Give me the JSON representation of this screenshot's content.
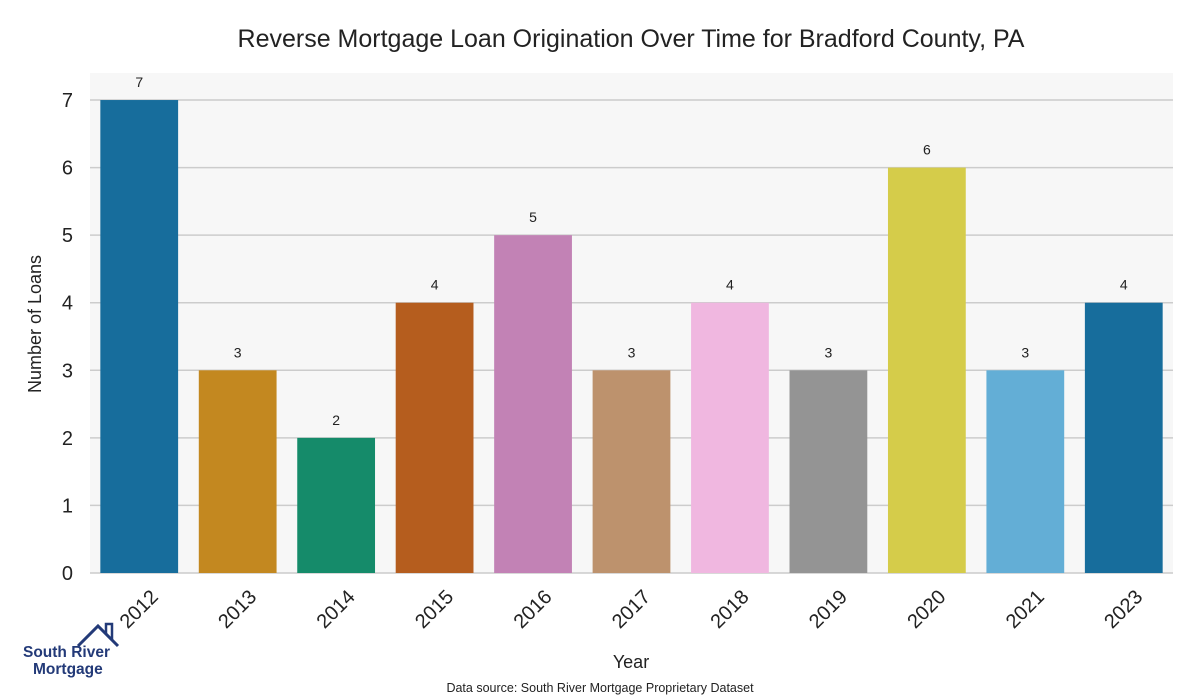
{
  "chart_data": {
    "type": "bar",
    "title": "Reverse Mortgage Loan Origination Over Time for Bradford County, PA",
    "xlabel": "Year",
    "ylabel": "Number of Loans",
    "categories": [
      "2012",
      "2013",
      "2014",
      "2015",
      "2016",
      "2017",
      "2018",
      "2019",
      "2020",
      "2021",
      "2023"
    ],
    "values": [
      7,
      3,
      2,
      4,
      5,
      3,
      4,
      3,
      6,
      3,
      4
    ],
    "colors": [
      "#176d9c",
      "#c38820",
      "#158b6a",
      "#b55d1e",
      "#c282b5",
      "#bd926d",
      "#f0b7e0",
      "#949494",
      "#d5cc4a",
      "#63aed6",
      "#176d9c"
    ],
    "yticks": [
      "0",
      "1",
      "2",
      "3",
      "4",
      "5",
      "6",
      "7"
    ],
    "ylim": [
      0,
      7.4
    ],
    "grid": true,
    "background": "#f7f7f7",
    "grid_color": "#cccccc"
  },
  "logo": {
    "line1": "South River",
    "line2": "Mortgage",
    "color": "#233a78"
  },
  "source_note": "Data source: South River Mortgage Proprietary Dataset"
}
